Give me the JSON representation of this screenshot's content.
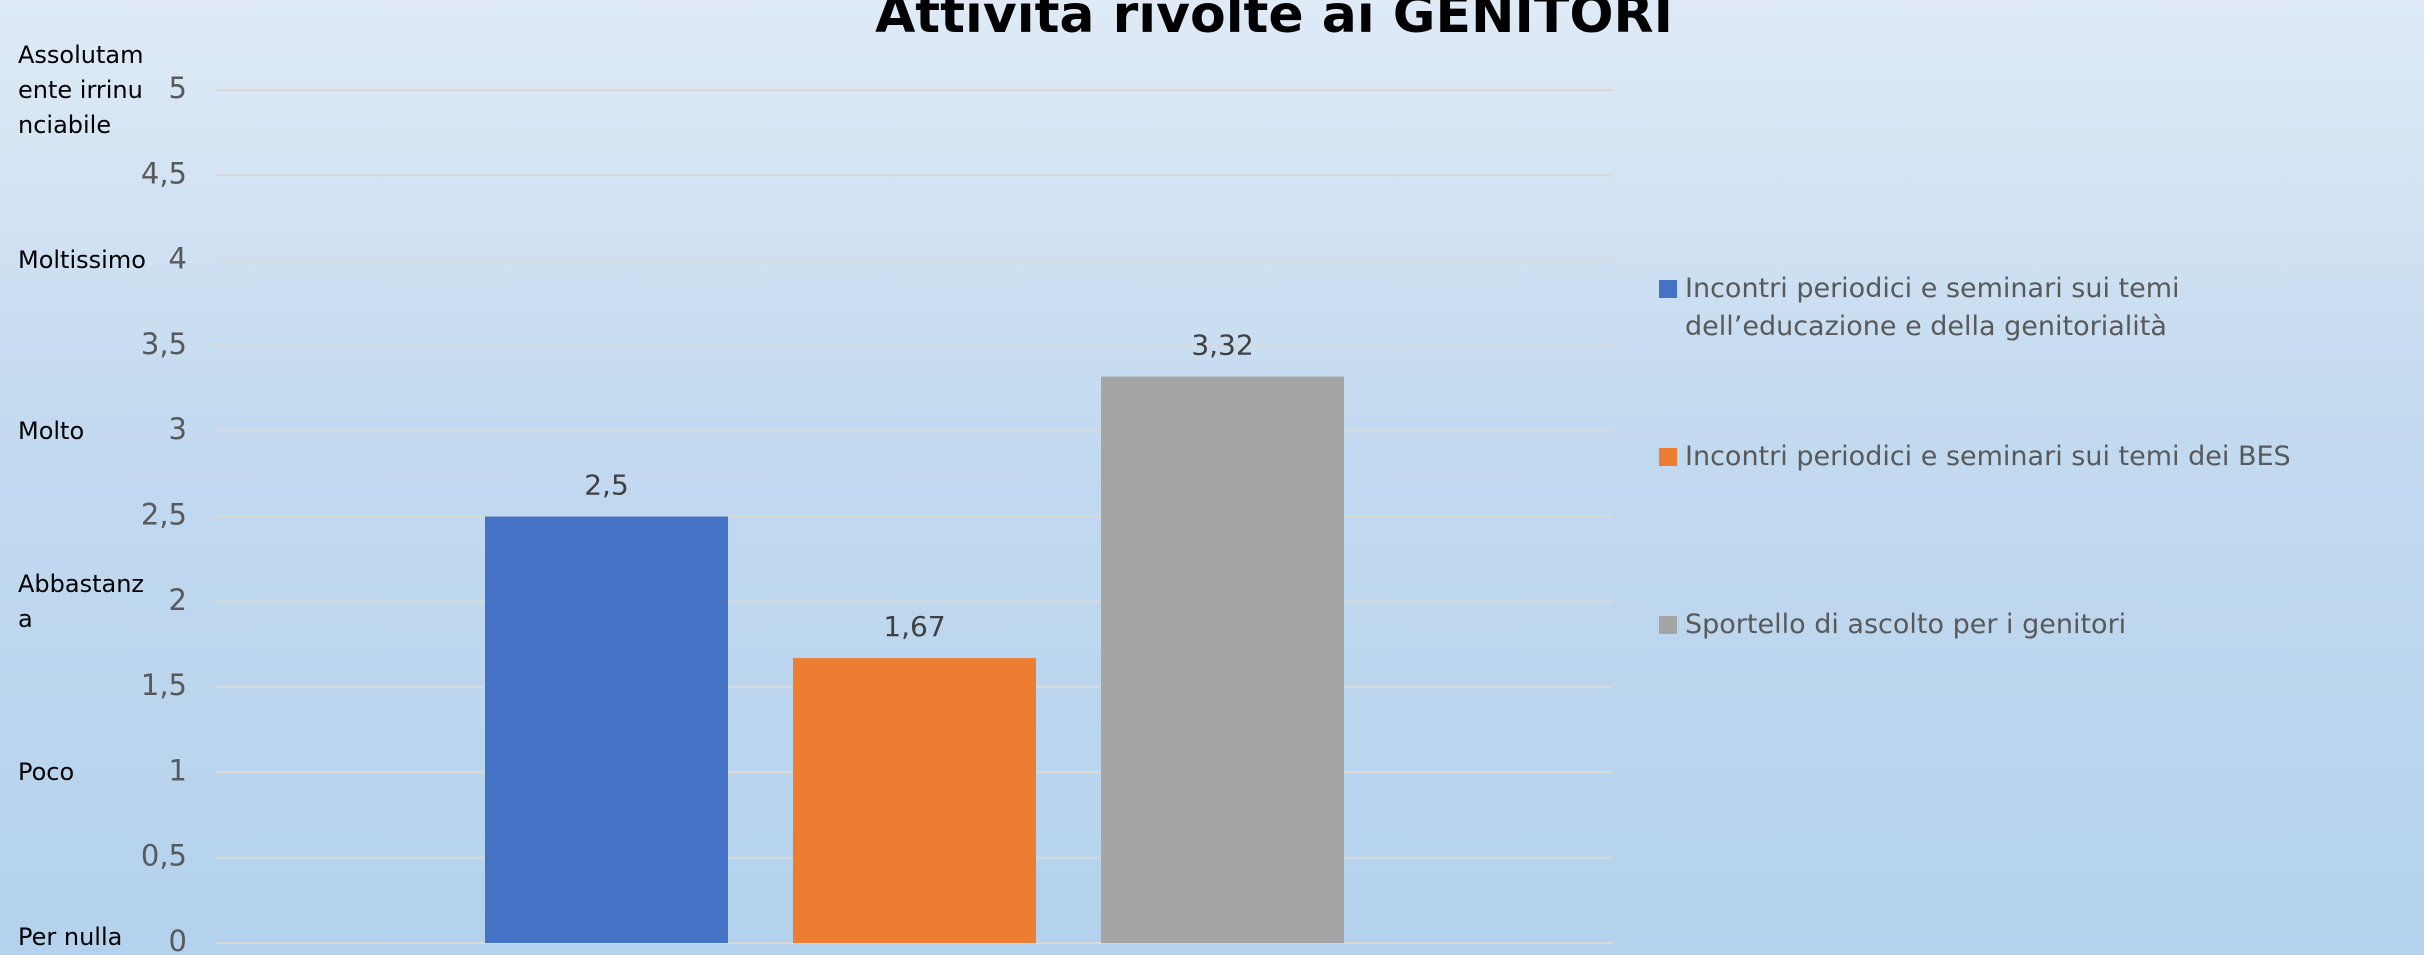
{
  "chart_data": {
    "type": "bar",
    "title": "Attività rivolte ai GENITORI",
    "categories": [
      null
    ],
    "series": [
      {
        "name": "Incontri periodici e seminari sui temi dell’educazione e della genitorialità",
        "color": "#4472c4",
        "values": [
          2.5
        ],
        "value_labels": [
          "2,5"
        ]
      },
      {
        "name": "Incontri periodici e seminari sui temi dei BES",
        "color": "#ed7d31",
        "values": [
          1.67
        ],
        "value_labels": [
          "1,67"
        ]
      },
      {
        "name": "Sportello di ascolto per i genitori",
        "color": "#a5a5a5",
        "values": [
          3.32
        ],
        "value_labels": [
          "3,32"
        ]
      }
    ],
    "ylim": [
      0,
      5
    ],
    "yticks": [
      0,
      {
        "value": 0.5,
        "label": "0,5"
      },
      1,
      {
        "value": 1.5,
        "label": "1,5"
      },
      2,
      {
        "value": 2.5,
        "label": "2,5"
      },
      3,
      {
        "value": 3.5,
        "label": "3,5"
      },
      4,
      {
        "value": 4.5,
        "label": "4,5"
      },
      5
    ],
    "scale_labels": [
      {
        "value": 5,
        "label": "Assolutamente irrinunciabile"
      },
      {
        "value": 4,
        "label": "Moltissimo"
      },
      {
        "value": 3,
        "label": "Molto"
      },
      {
        "value": 2,
        "label": "Abbastanza"
      },
      {
        "value": 1,
        "label": "Poco"
      },
      {
        "value": 0,
        "label": "Per nulla"
      }
    ],
    "grid": true,
    "legend": "right"
  }
}
